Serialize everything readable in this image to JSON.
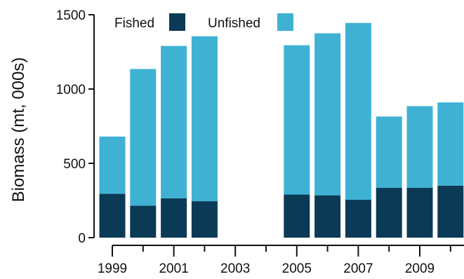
{
  "chart_data": {
    "type": "bar",
    "stacked": true,
    "title": "",
    "xlabel": "",
    "ylabel": "Biomass (mt, 000s)",
    "ylim": [
      0,
      1500
    ],
    "y_ticks": [
      "0",
      "500",
      "1000",
      "1500"
    ],
    "x_tick_labels": [
      "1999",
      "2001",
      "2003",
      "2005",
      "2007",
      "2009"
    ],
    "categories": [
      1999,
      2000,
      2001,
      2002,
      2003,
      2004,
      2005,
      2006,
      2007,
      2008,
      2009,
      2010
    ],
    "series": [
      {
        "name": "Fished",
        "color": "#0b3a56",
        "values": [
          295,
          215,
          265,
          245,
          null,
          null,
          290,
          285,
          255,
          335,
          335,
          350
        ]
      },
      {
        "name": "Unfished",
        "color": "#3fb2d4",
        "values": [
          385,
          920,
          1025,
          1110,
          null,
          null,
          1005,
          1090,
          1190,
          480,
          550,
          560
        ]
      }
    ],
    "legend_position": "top",
    "grid": false
  }
}
